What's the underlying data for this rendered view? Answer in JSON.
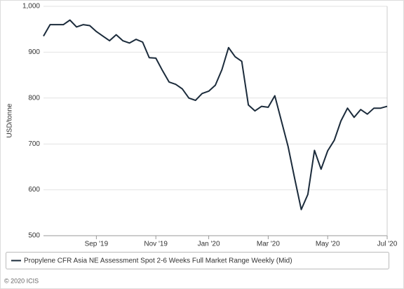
{
  "chart_data": {
    "type": "line",
    "y_label": "USD/tonne",
    "categories": [
      null,
      null,
      null,
      null,
      null,
      null,
      null,
      null,
      "Sep '19",
      null,
      null,
      null,
      null,
      null,
      null,
      null,
      null,
      "Nov '19",
      null,
      null,
      null,
      null,
      null,
      null,
      null,
      "Jan '20",
      null,
      null,
      null,
      null,
      null,
      null,
      null,
      null,
      "Mar '20",
      null,
      null,
      null,
      null,
      null,
      null,
      null,
      null,
      "May '20",
      null,
      null,
      null,
      null,
      null,
      null,
      null,
      null,
      "Jul '20"
    ],
    "series": [
      {
        "name": "Propylene CFR Asia NE Assessment Spot 2-6 Weeks Full Market Range Weekly (Mid)",
        "color": "#1b2b3b",
        "values": [
          935,
          960,
          960,
          960,
          970,
          955,
          960,
          958,
          945,
          935,
          925,
          938,
          925,
          920,
          928,
          922,
          888,
          887,
          860,
          835,
          830,
          820,
          800,
          795,
          810,
          815,
          828,
          862,
          910,
          890,
          880,
          785,
          772,
          782,
          780,
          805,
          750,
          695,
          625,
          557,
          590,
          686,
          645,
          685,
          708,
          750,
          778,
          758,
          775,
          765,
          778,
          778,
          782
        ]
      }
    ],
    "ylim": [
      500,
      1000
    ],
    "yticks": [
      500,
      600,
      700,
      800,
      900,
      {
        "value": 1000,
        "label": "1,000"
      }
    ],
    "grid": true,
    "legend": "bottom",
    "source": "© 2020 ICIS"
  }
}
